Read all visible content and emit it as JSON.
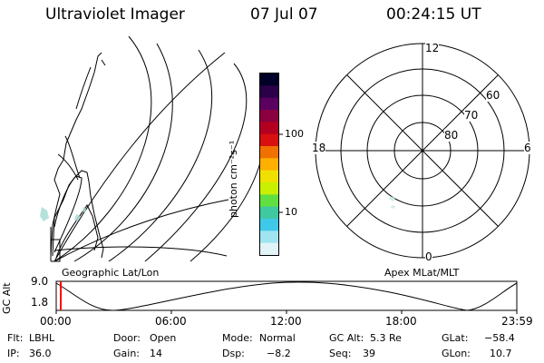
{
  "header": {
    "instrument": "Ultraviolet Imager",
    "date": "07 Jul 07",
    "time": "00:24:15 UT"
  },
  "geographic_panel": {
    "label": "Geographic Lat/Lon"
  },
  "colorbar": {
    "unit_label": "photon cm⁻²s⁻¹",
    "tick_100": "100",
    "tick_10": "10",
    "scale": "log",
    "colors": [
      "#000028",
      "#2a0048",
      "#5a0060",
      "#8a0040",
      "#b40020",
      "#d81010",
      "#f07000",
      "#ffb000",
      "#f0e000",
      "#c8f000",
      "#60e040",
      "#40c8a0",
      "#40c8e8",
      "#a0e4f0",
      "#e0f4f8"
    ]
  },
  "polar_plot": {
    "mlt_labels": {
      "top": "12",
      "left": "18",
      "right": "6",
      "bottom": "0"
    },
    "lat_labels": [
      "60",
      "70",
      "80"
    ],
    "label": "Apex MLat/MLT"
  },
  "altitude_plot": {
    "ylabel": "GC Alt",
    "y_ticks": [
      "9.0",
      "1.8"
    ],
    "x_ticks": [
      "00:00",
      "06:00",
      "12:00",
      "18:00",
      "23:59"
    ],
    "current_marker_color": "#ff0000"
  },
  "info": {
    "flt": {
      "label": "Flt:",
      "value": "LBHL"
    },
    "door": {
      "label": "Door:",
      "value": "Open"
    },
    "mode": {
      "label": "Mode:",
      "value": "Normal"
    },
    "gc_alt": {
      "label": "GC Alt:",
      "value": "5.3 Re"
    },
    "glat": {
      "label": "GLat:",
      "value": "−58.4"
    },
    "ip": {
      "label": "IP:",
      "value": "36.0"
    },
    "gain": {
      "label": "Gain:",
      "value": "14"
    },
    "dsp": {
      "label": "Dsp:",
      "value": "−8.2"
    },
    "seq": {
      "label": "Seq:",
      "value": "39"
    },
    "glon": {
      "label": "GLon:",
      "value": "10.7"
    }
  }
}
